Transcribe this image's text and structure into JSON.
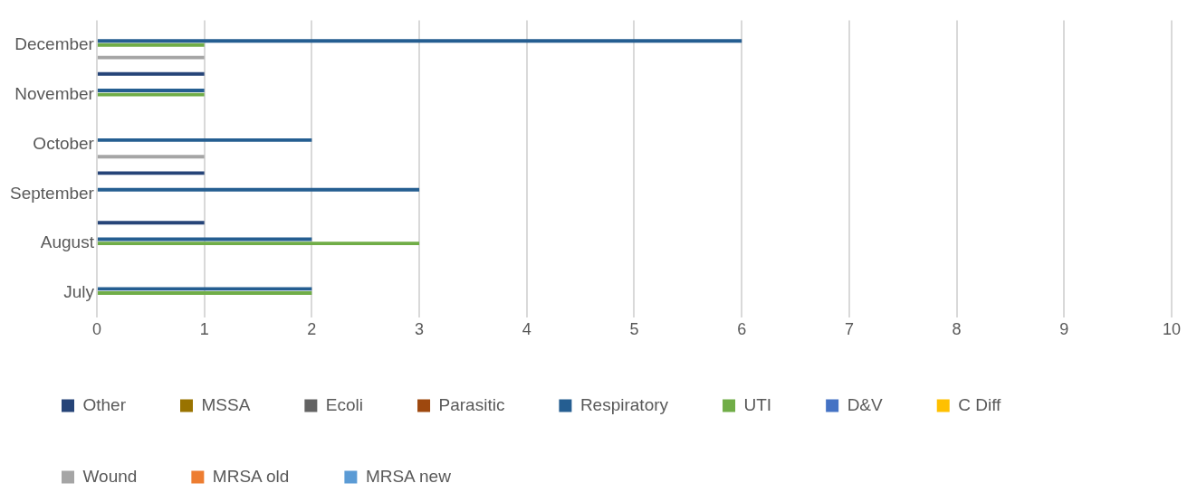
{
  "chart_data": {
    "type": "bar",
    "orientation": "horizontal",
    "categories": [
      "December",
      "November",
      "October",
      "September",
      "August",
      "July"
    ],
    "series": [
      {
        "name": "Other",
        "color": "#264478",
        "values": [
          0,
          1,
          0,
          1,
          1,
          0
        ]
      },
      {
        "name": "MSSA",
        "color": "#997300",
        "values": [
          0,
          0,
          0,
          0,
          0,
          0
        ]
      },
      {
        "name": "Ecoli",
        "color": "#636363",
        "values": [
          0,
          0,
          0,
          0,
          0,
          0
        ]
      },
      {
        "name": "Parasitic",
        "color": "#9e480e",
        "values": [
          0,
          0,
          0,
          0,
          0,
          0
        ]
      },
      {
        "name": "Respiratory",
        "color": "#255e91",
        "values": [
          6,
          1,
          2,
          3,
          2,
          2
        ]
      },
      {
        "name": "UTI",
        "color": "#70ad47",
        "values": [
          1,
          1,
          0,
          0,
          3,
          2
        ]
      },
      {
        "name": "D&V",
        "color": "#4472c4",
        "values": [
          0,
          0,
          0,
          0,
          0,
          0
        ]
      },
      {
        "name": "C Diff",
        "color": "#ffc000",
        "values": [
          0,
          0,
          0,
          0,
          0,
          0
        ]
      },
      {
        "name": "Wound",
        "color": "#a5a5a5",
        "values": [
          1,
          0,
          1,
          0,
          0,
          0
        ]
      },
      {
        "name": "MRSA old",
        "color": "#ed7d31",
        "values": [
          0,
          0,
          0,
          0,
          0,
          0
        ]
      },
      {
        "name": "MRSA new",
        "color": "#5b9bd5",
        "values": [
          0,
          0,
          0,
          0,
          0,
          0
        ]
      }
    ],
    "xlim": [
      0,
      10
    ],
    "xticks": [
      0,
      1,
      2,
      3,
      4,
      5,
      6,
      7,
      8,
      9,
      10
    ],
    "grid": "x",
    "legend": "bottom"
  }
}
